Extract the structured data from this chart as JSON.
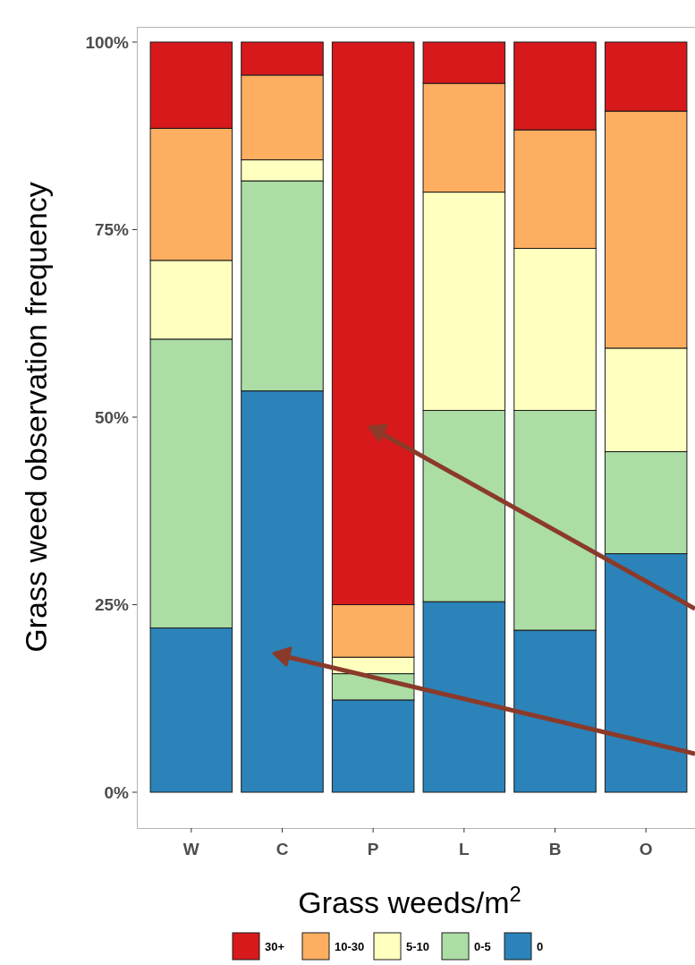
{
  "chart_data": {
    "type": "bar",
    "stacked": true,
    "xlabel": "Grass weeds/m$^{2}$",
    "ylabel": "Grass weed observation frequency",
    "categories": [
      "W",
      "C",
      "P",
      "L",
      "B",
      "O"
    ],
    "series": [
      {
        "name": "0",
        "color": "#2b83ba",
        "values": [
          21.9,
          53.5,
          12.3,
          25.4,
          21.6,
          31.8
        ]
      },
      {
        "name": "0-5",
        "color": "#abdda4",
        "values": [
          38.5,
          28.0,
          3.5,
          25.5,
          29.3,
          13.6
        ]
      },
      {
        "name": "5-10",
        "color": "#ffffbf",
        "values": [
          10.5,
          2.8,
          2.2,
          29.1,
          21.6,
          13.8
        ]
      },
      {
        "name": "10-30",
        "color": "#fdae61",
        "values": [
          17.6,
          11.3,
          7.0,
          14.5,
          15.8,
          31.6
        ]
      },
      {
        "name": "30+",
        "color": "#d7191c",
        "values": [
          11.5,
          4.4,
          75.0,
          5.5,
          11.7,
          9.2
        ]
      }
    ],
    "ylim": [
      0,
      100
    ],
    "yticks": [
      {
        "value": 0,
        "label": "0%"
      },
      {
        "value": 25,
        "label": "25%"
      },
      {
        "value": 50,
        "label": "50%"
      },
      {
        "value": 75,
        "label": "75%"
      },
      {
        "value": 100,
        "label": "100%"
      }
    ],
    "grid": false,
    "legend": "bottom"
  }
}
